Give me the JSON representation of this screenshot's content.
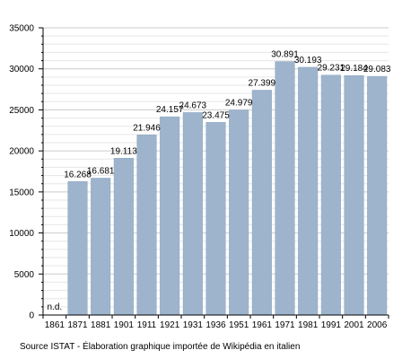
{
  "chart_data": {
    "type": "bar",
    "categories": [
      "1861",
      "1871",
      "1881",
      "1901",
      "1911",
      "1921",
      "1931",
      "1936",
      "1951",
      "1961",
      "1971",
      "1981",
      "1991",
      "2001",
      "2006"
    ],
    "values": [
      null,
      16268,
      16681,
      19113,
      21946,
      24157,
      24673,
      23475,
      24979,
      27399,
      30891,
      30193,
      29231,
      29184,
      29083
    ],
    "data_labels": [
      "n.d.",
      "16.268",
      "16.681",
      "19.113",
      "21.946",
      "24.157",
      "24.673",
      "23.475",
      "24.979",
      "27.399",
      "30.891",
      "30.193",
      "29.231",
      "29.184",
      "29.083"
    ],
    "yticks": [
      0,
      5000,
      10000,
      15000,
      20000,
      25000,
      30000,
      35000
    ],
    "ylim": [
      0,
      35000
    ],
    "title": "",
    "xlabel": "",
    "ylabel": "",
    "grid": true,
    "colors": {
      "bar": "#9db4cc",
      "bar_edge": "#8aa4bf",
      "grid_major": "#cccccc",
      "grid_minor": "#e6e6e6",
      "axis": "#000000"
    }
  },
  "source_text": "Source ISTAT - Élaboration graphique importée de Wikipédia en italien"
}
